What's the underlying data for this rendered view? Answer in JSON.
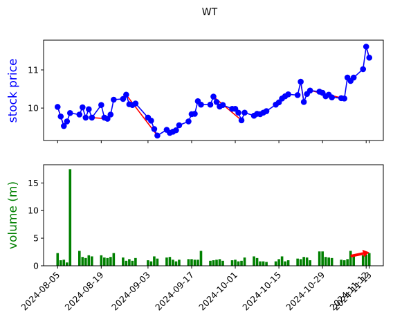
{
  "chart_data": {
    "type": "line+bar",
    "title": "WT",
    "price_panel": {
      "ylabel": "stock price",
      "ylabel_color": "#0000ff",
      "line_color": "#0000ff",
      "segment_color": "#ff0000",
      "ylim": [
        9.15,
        11.78
      ],
      "yticks": [
        10,
        11
      ],
      "dates": [
        "2024-08-05",
        "2024-08-06",
        "2024-08-07",
        "2024-08-08",
        "2024-08-09",
        "2024-08-12",
        "2024-08-13",
        "2024-08-14",
        "2024-08-15",
        "2024-08-16",
        "2024-08-19",
        "2024-08-20",
        "2024-08-21",
        "2024-08-22",
        "2024-08-23",
        "2024-08-26",
        "2024-08-27",
        "2024-08-28",
        "2024-08-29",
        "2024-08-30",
        "2024-09-03",
        "2024-09-04",
        "2024-09-05",
        "2024-09-06",
        "2024-09-09",
        "2024-09-10",
        "2024-09-11",
        "2024-09-12",
        "2024-09-13",
        "2024-09-16",
        "2024-09-17",
        "2024-09-18",
        "2024-09-19",
        "2024-09-20",
        "2024-09-23",
        "2024-09-24",
        "2024-09-25",
        "2024-09-26",
        "2024-09-27",
        "2024-09-30",
        "2024-10-01",
        "2024-10-02",
        "2024-10-03",
        "2024-10-04",
        "2024-10-07",
        "2024-10-08",
        "2024-10-09",
        "2024-10-10",
        "2024-10-11",
        "2024-10-14",
        "2024-10-15",
        "2024-10-16",
        "2024-10-17",
        "2024-10-18",
        "2024-10-21",
        "2024-10-22",
        "2024-10-23",
        "2024-10-24",
        "2024-10-25",
        "2024-10-28",
        "2024-10-29",
        "2024-10-30",
        "2024-10-31",
        "2024-11-01",
        "2024-11-04",
        "2024-11-05",
        "2024-11-06",
        "2024-11-07",
        "2024-11-08",
        "2024-11-11",
        "2024-11-12",
        "2024-11-13"
      ],
      "values": [
        10.03,
        9.78,
        9.53,
        9.65,
        9.87,
        9.83,
        10.02,
        9.75,
        9.97,
        9.75,
        10.08,
        9.75,
        9.72,
        9.83,
        10.22,
        10.24,
        10.35,
        10.1,
        10.08,
        10.12,
        9.75,
        9.67,
        9.45,
        9.28,
        9.43,
        9.35,
        9.38,
        9.42,
        9.55,
        9.65,
        9.84,
        9.85,
        10.18,
        10.09,
        10.09,
        10.3,
        10.16,
        10.04,
        10.08,
        9.98,
        9.98,
        9.88,
        9.68,
        9.88,
        9.8,
        9.85,
        9.84,
        9.88,
        9.92,
        10.09,
        10.15,
        10.25,
        10.31,
        10.36,
        10.34,
        10.69,
        10.16,
        10.37,
        10.46,
        10.43,
        10.4,
        10.31,
        10.35,
        10.28,
        10.26,
        10.25,
        10.8,
        10.71,
        10.8,
        11.02,
        11.61,
        11.32
      ],
      "red_segments": [
        [
          0,
          2
        ],
        [
          9,
          12
        ],
        [
          16,
          23
        ],
        [
          35,
          42
        ],
        [
          55,
          56
        ],
        [
          58,
          65
        ],
        [
          70,
          71
        ]
      ]
    },
    "volume_panel": {
      "ylabel": "volume (m)",
      "ylabel_color": "#008000",
      "bar_color": "#008000",
      "arrow_color": "#ff0000",
      "ylim": [
        0,
        18.3
      ],
      "yticks": [
        0,
        5,
        10,
        15
      ],
      "values": [
        2.3,
        1.0,
        1.1,
        0.6,
        17.5,
        2.7,
        1.6,
        1.4,
        1.9,
        1.7,
        1.9,
        1.5,
        1.4,
        1.6,
        2.3,
        1.5,
        0.9,
        1.2,
        0.9,
        1.4,
        1.0,
        0.8,
        1.7,
        1.3,
        1.5,
        1.6,
        1.1,
        0.8,
        1.1,
        1.2,
        1.2,
        1.1,
        1.1,
        2.7,
        0.9,
        1.0,
        1.1,
        1.2,
        0.9,
        1.0,
        1.1,
        0.8,
        0.9,
        1.5,
        1.7,
        1.4,
        0.8,
        0.8,
        0.7,
        0.8,
        1.2,
        1.7,
        0.8,
        1.0,
        1.3,
        1.2,
        1.6,
        1.5,
        1.0,
        2.6,
        2.6,
        1.6,
        1.5,
        1.4,
        1.1,
        1.0,
        1.2,
        2.7,
        1.9,
        1.9,
        2.0,
        2.3
      ],
      "arrow": {
        "from_index": 67,
        "to_index": 71,
        "from_value": 1.75,
        "to_value": 2.45
      }
    },
    "x_tick_labels": [
      "2024-08-05",
      "2024-08-19",
      "2024-09-03",
      "2024-09-17",
      "2024-10-01",
      "2024-10-15",
      "2024-10-29",
      "2024-11-12",
      "2024-11-13"
    ],
    "x_tick_indices": [
      0,
      10,
      20,
      30,
      40,
      50,
      60,
      70,
      71
    ]
  }
}
